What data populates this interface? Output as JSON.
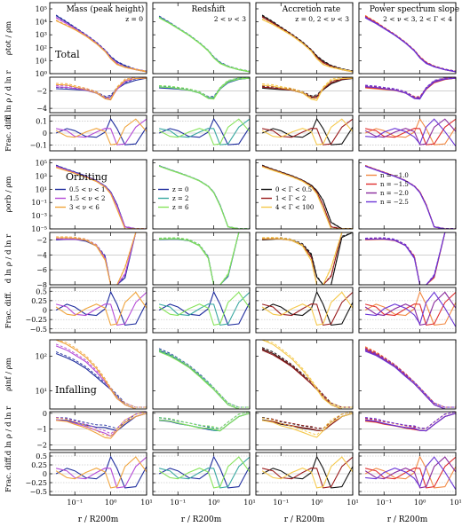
{
  "figure": {
    "column_titles": [
      "Mass (peak height)",
      "Redshift",
      "Accretion rate",
      "Power spectrum slope"
    ],
    "column_subtitles": [
      "z = 0",
      "2 < ν < 3",
      "z = 0, 2 < ν < 3",
      "2 < ν < 3, 2 < Γ < 4"
    ],
    "section_labels": [
      "Total",
      "Orbiting",
      "Infalling"
    ],
    "row_ylabels": [
      "ρtot / ρm",
      "d ln ρ / d ln r",
      "Frac. diff.",
      "ρorb / ρm",
      "d ln ρ / d ln r",
      "Frac. diff.",
      "ρinf / ρm",
      "d ln ρ / d ln r",
      "Frac. diff."
    ],
    "xlabel": "r / R200m",
    "xtick_labels": [
      "10⁻¹",
      "10⁰",
      "10¹"
    ],
    "ytick_labels": {
      "total_density": [
        "10⁰",
        "10¹",
        "10²",
        "10³",
        "10⁴",
        "10⁵"
      ],
      "total_slope": [
        "−4",
        "−2"
      ],
      "total_frac": [
        "−0.1",
        "0",
        "0.1"
      ],
      "orbiting_density": [
        "10⁻⁵",
        "10⁻³",
        "10⁻¹",
        "10¹",
        "10³",
        "10⁵"
      ],
      "orbiting_slope": [
        "−8",
        "−6",
        "−4",
        "−2"
      ],
      "orbiting_frac": [
        "−0.5",
        "−0.25",
        "0",
        "0.25",
        "0.5"
      ],
      "infalling_density": [
        "10¹",
        "10²"
      ],
      "infalling_slope": [
        "−2",
        "−1",
        "0"
      ],
      "infalling_frac": [
        "−0.5",
        "−0.25",
        "0",
        "0.25",
        "0.5"
      ]
    },
    "legends": [
      [
        "0.5 < ν < 1",
        "1.5 < ν < 2",
        "3 < ν < 6"
      ],
      [
        "z = 0",
        "z = 2",
        "z = 6"
      ],
      [
        "0 < Γ < 0.5",
        "1 < Γ < 2",
        "4 < Γ < 100"
      ],
      [
        "n = −1.0",
        "n = −1.5",
        "n = −2.0",
        "n = −2.5"
      ]
    ],
    "colors": [
      [
        "#1f2d9e",
        "#b44ad6",
        "#f0a43c"
      ],
      [
        "#1f2d9e",
        "#3aa8a0",
        "#86e35a"
      ],
      [
        "#111111",
        "#9a1c1c",
        "#f5c84a"
      ],
      [
        "#f28a45",
        "#e02f2f",
        "#8a2a9c",
        "#6b35d6"
      ]
    ]
  },
  "chart_data": {
    "type": "line",
    "xscale": "log",
    "xlim": [
      0.02,
      10
    ],
    "columns": [
      "Mass (peak height)",
      "Redshift",
      "Accretion rate",
      "Power spectrum slope"
    ],
    "rows": [
      {
        "name": "total_density",
        "ylabel": "ρtot / ρm",
        "yscale": "log",
        "ylim": [
          1,
          300000
        ]
      },
      {
        "name": "total_slope",
        "ylabel": "d ln ρ / d ln r",
        "ylim": [
          -4.5,
          -0.4
        ]
      },
      {
        "name": "total_frac",
        "ylabel": "Frac. diff.",
        "ylim": [
          -0.15,
          0.15
        ]
      },
      {
        "name": "orbiting_density",
        "ylabel": "ρorb / ρm",
        "yscale": "log",
        "ylim": [
          1e-05,
          300000
        ]
      },
      {
        "name": "orbiting_slope",
        "ylabel": "d ln ρ / d ln r",
        "ylim": [
          -8,
          -1
        ]
      },
      {
        "name": "orbiting_frac",
        "ylabel": "Frac. diff.",
        "ylim": [
          -0.6,
          0.6
        ]
      },
      {
        "name": "infalling_density",
        "ylabel": "ρinf / ρm",
        "yscale": "log",
        "ylim": [
          3,
          300
        ]
      },
      {
        "name": "infalling_slope",
        "ylabel": "d ln ρ / d ln r",
        "ylim": [
          -2.3,
          0.1
        ]
      },
      {
        "name": "infalling_frac",
        "ylabel": "Frac. diff.",
        "ylim": [
          -0.6,
          0.6
        ]
      }
    ],
    "x": [
      0.03,
      0.06,
      0.1,
      0.2,
      0.4,
      0.7,
      1.0,
      1.5,
      2.5,
      5.0,
      10.0
    ],
    "series_by_column": [
      [
        {
          "name": "0.5 < ν < 1",
          "total_density": [
            30000,
            9000,
            3500,
            1000,
            250,
            60,
            20,
            8,
            4,
            2,
            1.4
          ],
          "orbiting_density": [
            40000,
            10000,
            4000,
            1000,
            200,
            30,
            4,
            0.05,
            2e-05,
            1e-05,
            1e-05
          ],
          "infalling_density": [
            120,
            90,
            70,
            45,
            25,
            15,
            11,
            7,
            4,
            3,
            3
          ]
        },
        {
          "name": "1.5 < ν < 2",
          "total_density": [
            20000,
            7000,
            3000,
            900,
            220,
            55,
            16,
            6,
            3,
            2,
            1.4
          ],
          "orbiting_density": [
            30000,
            8000,
            3000,
            800,
            180,
            25,
            3,
            0.03,
            2e-05,
            1e-05,
            1e-05
          ],
          "infalling_density": [
            200,
            150,
            110,
            70,
            35,
            18,
            11,
            6,
            4,
            3,
            3
          ]
        },
        {
          "name": "3 < ν < 6",
          "total_density": [
            12000,
            5000,
            2500,
            800,
            200,
            50,
            14,
            5,
            3,
            2,
            1.4
          ],
          "orbiting_density": [
            20000,
            6000,
            2500,
            700,
            150,
            20,
            2,
            0.01,
            1e-05,
            1e-05,
            1e-05
          ],
          "infalling_density": [
            300,
            220,
            160,
            95,
            45,
            20,
            11,
            6,
            4,
            3,
            3
          ]
        }
      ],
      [
        {
          "name": "z = 0",
          "total_density": [
            25000,
            8000,
            3200,
            950,
            230,
            58,
            18,
            7,
            3.5,
            2,
            1.4
          ],
          "orbiting_density": [
            35000,
            9000,
            3500,
            900,
            190,
            28,
            3.5,
            0.04,
            2e-05,
            1e-05,
            1e-05
          ],
          "infalling_density": [
            150,
            110,
            80,
            50,
            28,
            16,
            11,
            7,
            4,
            3,
            3
          ]
        },
        {
          "name": "z = 2",
          "total_density": [
            22000,
            7500,
            3100,
            930,
            225,
            57,
            17,
            6.5,
            3.4,
            2,
            1.4
          ],
          "orbiting_density": [
            32000,
            8500,
            3300,
            880,
            185,
            27,
            3.2,
            0.035,
            2e-05,
            1e-05,
            1e-05
          ],
          "infalling_density": [
            140,
            105,
            78,
            49,
            27,
            16,
            11,
            7,
            4,
            3,
            3
          ]
        },
        {
          "name": "z = 6",
          "total_density": [
            20000,
            7000,
            3000,
            900,
            220,
            56,
            16,
            6,
            3.3,
            2,
            1.4
          ],
          "orbiting_density": [
            30000,
            8000,
            3200,
            860,
            180,
            26,
            3,
            0.03,
            2e-05,
            1e-05,
            1e-05
          ],
          "infalling_density": [
            135,
            100,
            75,
            48,
            26,
            15,
            11,
            7,
            4,
            3,
            3
          ]
        }
      ],
      [
        {
          "name": "0 < Γ < 0.5",
          "total_density": [
            30000,
            9500,
            3600,
            1050,
            260,
            65,
            22,
            9,
            4,
            2.2,
            1.5
          ],
          "orbiting_density": [
            40000,
            10000,
            4000,
            1100,
            230,
            40,
            6,
            0.2,
            0.0001,
            1e-05,
            1e-05
          ],
          "infalling_density": [
            160,
            120,
            85,
            52,
            28,
            16,
            11,
            7,
            4,
            3,
            3
          ]
        },
        {
          "name": "1 < Γ < 2",
          "total_density": [
            23000,
            7800,
            3200,
            950,
            230,
            58,
            18,
            7,
            3.5,
            2,
            1.4
          ],
          "orbiting_density": [
            32000,
            8500,
            3400,
            900,
            190,
            28,
            3.5,
            0.04,
            2e-05,
            1e-05,
            1e-05
          ],
          "infalling_density": [
            150,
            110,
            80,
            50,
            27,
            16,
            11,
            7,
            4,
            3,
            3
          ]
        },
        {
          "name": "4 < Γ < 100",
          "total_density": [
            15000,
            6000,
            2700,
            850,
            210,
            52,
            14,
            5,
            3,
            2,
            1.4
          ],
          "orbiting_density": [
            25000,
            7000,
            2800,
            750,
            160,
            22,
            2,
            0.01,
            1e-05,
            1e-05,
            1e-05
          ],
          "infalling_density": [
            300,
            220,
            150,
            85,
            40,
            19,
            11,
            6,
            4,
            3,
            3
          ]
        }
      ],
      [
        {
          "name": "n = −1.0",
          "total_density": [
            28000,
            9000,
            3400,
            1000,
            240,
            60,
            19,
            7,
            3.6,
            2,
            1.4
          ],
          "orbiting_density": [
            38000,
            9500,
            3700,
            950,
            200,
            30,
            4,
            0.05,
            2e-05,
            1e-05,
            1e-05
          ],
          "infalling_density": [
            170,
            120,
            85,
            52,
            28,
            16,
            11,
            7,
            4,
            3,
            3
          ]
        },
        {
          "name": "n = −1.5",
          "total_density": [
            25000,
            8300,
            3300,
            970,
            235,
            59,
            18,
            7,
            3.5,
            2,
            1.4
          ],
          "orbiting_density": [
            35000,
            9000,
            3500,
            920,
            195,
            29,
            3.8,
            0.045,
            2e-05,
            1e-05,
            1e-05
          ],
          "infalling_density": [
            160,
            115,
            82,
            51,
            28,
            16,
            11,
            7,
            4,
            3,
            3
          ]
        },
        {
          "name": "n = −2.0",
          "total_density": [
            22000,
            7700,
            3150,
            940,
            228,
            57,
            17,
            6.5,
            3.4,
            2,
            1.4
          ],
          "orbiting_density": [
            32000,
            8500,
            3300,
            890,
            188,
            28,
            3.4,
            0.04,
            2e-05,
            1e-05,
            1e-05
          ],
          "infalling_density": [
            150,
            110,
            80,
            50,
            27,
            16,
            11,
            7,
            4,
            3,
            3
          ]
        },
        {
          "name": "n = −2.5",
          "total_density": [
            20000,
            7200,
            3000,
            910,
            222,
            56,
            16,
            6,
            3.3,
            2,
            1.4
          ],
          "orbiting_density": [
            30000,
            8000,
            3100,
            860,
            182,
            27,
            3,
            0.035,
            2e-05,
            1e-05,
            1e-05
          ],
          "infalling_density": [
            140,
            105,
            77,
            49,
            26,
            16,
            11,
            7,
            4,
            3,
            3
          ]
        }
      ]
    ]
  }
}
